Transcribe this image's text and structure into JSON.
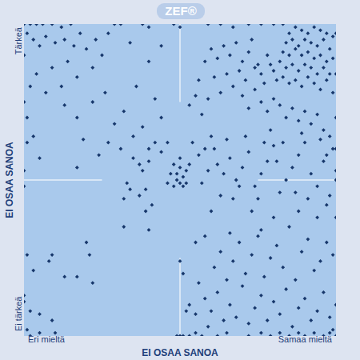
{
  "chart_data": {
    "type": "scatter",
    "logo": "ZEF®",
    "x_label": "EI OSAA SANOA",
    "y_label": "EI OSAA SANOA",
    "x_end_labels": [
      "Eri mieltä",
      "Samaa mieltä"
    ],
    "y_end_labels": [
      "Ei tärkeä",
      "Tärkeä"
    ],
    "xlim": [
      0,
      100
    ],
    "ylim": [
      0,
      100
    ],
    "grid": false,
    "tick_labels": false,
    "marker": "diamond",
    "color": "#17376b",
    "x": [
      85,
      87,
      89,
      91,
      93,
      95,
      97,
      99,
      84,
      86,
      88,
      90,
      92,
      94,
      96,
      98,
      83,
      85,
      87,
      89,
      91,
      93,
      95,
      97,
      99,
      82,
      84,
      86,
      88,
      90,
      92,
      94,
      96,
      98,
      80,
      81,
      83,
      85,
      87,
      89,
      91,
      93,
      95,
      97,
      99,
      78,
      79,
      76,
      77,
      75,
      60,
      62,
      64,
      66,
      68,
      70,
      72,
      74,
      73,
      71,
      69,
      67,
      65,
      63,
      61,
      59,
      70,
      72,
      74,
      76,
      78,
      80,
      82,
      84,
      86,
      88,
      90,
      92,
      94,
      96,
      98,
      100,
      100,
      100,
      100,
      58,
      56,
      57,
      55,
      53,
      0,
      2,
      4,
      6,
      9,
      12,
      15,
      29,
      31,
      38,
      40,
      48,
      50,
      59,
      63,
      67,
      72,
      76,
      80,
      83,
      1,
      3,
      5,
      7,
      10,
      13,
      16,
      18,
      20,
      23,
      25,
      14,
      9,
      4,
      2,
      7,
      12,
      17,
      22,
      26,
      0,
      0,
      1,
      3,
      13,
      17,
      22,
      29,
      32,
      35,
      38,
      42,
      44,
      36,
      40,
      44,
      34,
      27,
      31,
      40,
      48,
      49,
      50,
      51,
      52,
      50,
      48,
      51,
      52,
      49,
      47,
      53,
      46,
      50,
      44,
      40,
      38,
      37,
      42,
      46,
      39,
      37,
      41,
      39,
      33,
      35,
      54,
      56,
      58,
      60,
      0,
      1,
      0,
      17,
      5,
      34,
      32,
      24,
      27,
      19,
      62,
      64,
      66,
      68,
      70,
      72,
      74,
      76,
      78,
      80,
      82,
      84,
      86,
      88,
      90,
      92,
      94,
      96,
      98,
      100,
      63,
      67,
      69,
      75,
      81,
      87,
      91,
      99,
      100,
      77,
      57,
      59,
      61,
      65,
      71,
      79,
      83,
      89,
      95,
      97,
      1,
      3,
      8,
      9,
      20,
      21,
      17,
      13,
      22,
      40,
      0,
      0,
      2,
      5,
      9,
      1,
      5,
      10,
      2,
      32,
      49,
      50,
      51,
      53,
      55,
      57,
      62,
      65,
      72,
      76,
      79,
      82,
      85,
      88,
      90,
      93,
      96,
      98,
      100,
      99,
      52,
      53,
      55,
      58,
      60,
      62,
      64,
      66,
      68,
      70,
      72,
      74,
      76,
      78,
      80,
      82,
      84,
      86,
      88,
      90,
      92,
      94,
      96,
      98,
      100,
      61,
      63,
      65,
      67,
      69,
      71,
      73,
      75,
      77,
      79,
      81,
      83,
      85,
      87,
      89,
      91,
      93,
      95,
      97,
      99,
      100,
      80,
      76,
      66,
      58,
      88,
      94,
      97,
      73,
      60,
      55,
      50,
      51,
      56,
      59
    ],
    "values": [
      97,
      99,
      98,
      97,
      99,
      98,
      97,
      96,
      94,
      95,
      93,
      95,
      94,
      93,
      95,
      92,
      91,
      90,
      92,
      90,
      91,
      89,
      90,
      88,
      89,
      88,
      86,
      87,
      85,
      87,
      86,
      84,
      86,
      84,
      85,
      82,
      83,
      81,
      82,
      80,
      83,
      81,
      79,
      82,
      78,
      90,
      87,
      84,
      81,
      87,
      92,
      89,
      93,
      90,
      94,
      88,
      91,
      86,
      95,
      82,
      85,
      80,
      84,
      78,
      83,
      76,
      77,
      73,
      79,
      75,
      72,
      76,
      74,
      70,
      73,
      69,
      72,
      68,
      71,
      66,
      64,
      70,
      84,
      97,
      60,
      88,
      82,
      71,
      77,
      74,
      100,
      100,
      100,
      100,
      100,
      99,
      100,
      100,
      100,
      100,
      99,
      100,
      99,
      100,
      100,
      99,
      100,
      100,
      100,
      100,
      97,
      95,
      93,
      96,
      94,
      95,
      93,
      97,
      92,
      95,
      90,
      88,
      86,
      84,
      80,
      78,
      80,
      83,
      86,
      78,
      90,
      75,
      70,
      64,
      74,
      70,
      75,
      68,
      72,
      64,
      67,
      76,
      70,
      80,
      88,
      93,
      94,
      97,
      60,
      60,
      55,
      52,
      54,
      51,
      53,
      49,
      48,
      48,
      49,
      50,
      52,
      55,
      49,
      57,
      59,
      56,
      53,
      55,
      62,
      62,
      47,
      45,
      42,
      40,
      49,
      57,
      62,
      58,
      60,
      64,
      53,
      62,
      48,
      54,
      57,
      47,
      44,
      58,
      62,
      63,
      55,
      52,
      57,
      50,
      54,
      59,
      48,
      52,
      56,
      61,
      46,
      50,
      54,
      58,
      62,
      52,
      48,
      56,
      45,
      53,
      45,
      44,
      48,
      44,
      56,
      46,
      44,
      60,
      50,
      62,
      49,
      53,
      60,
      63,
      64,
      66,
      62,
      65,
      63,
      58,
      26,
      21,
      24,
      26,
      30,
      26,
      19,
      19,
      17,
      34,
      13,
      11,
      8,
      7,
      5,
      2,
      1,
      1,
      0,
      35,
      0,
      0,
      0,
      0,
      1,
      0,
      0,
      1,
      0,
      1,
      0,
      1,
      0,
      1,
      0,
      1,
      0,
      1,
      0,
      2,
      8,
      10,
      7,
      12,
      8,
      14,
      5,
      10,
      6,
      16,
      4,
      9,
      13,
      5,
      11,
      7,
      15,
      3,
      9,
      12,
      5,
      8,
      14,
      6,
      10,
      22,
      27,
      18,
      24,
      30,
      20,
      26,
      32,
      19,
      25,
      29,
      22,
      35,
      18,
      27,
      31,
      21,
      24,
      30,
      26,
      38,
      38,
      34,
      33,
      32,
      40,
      38,
      42,
      40,
      40,
      30,
      24,
      20,
      17,
      3
    ]
  }
}
